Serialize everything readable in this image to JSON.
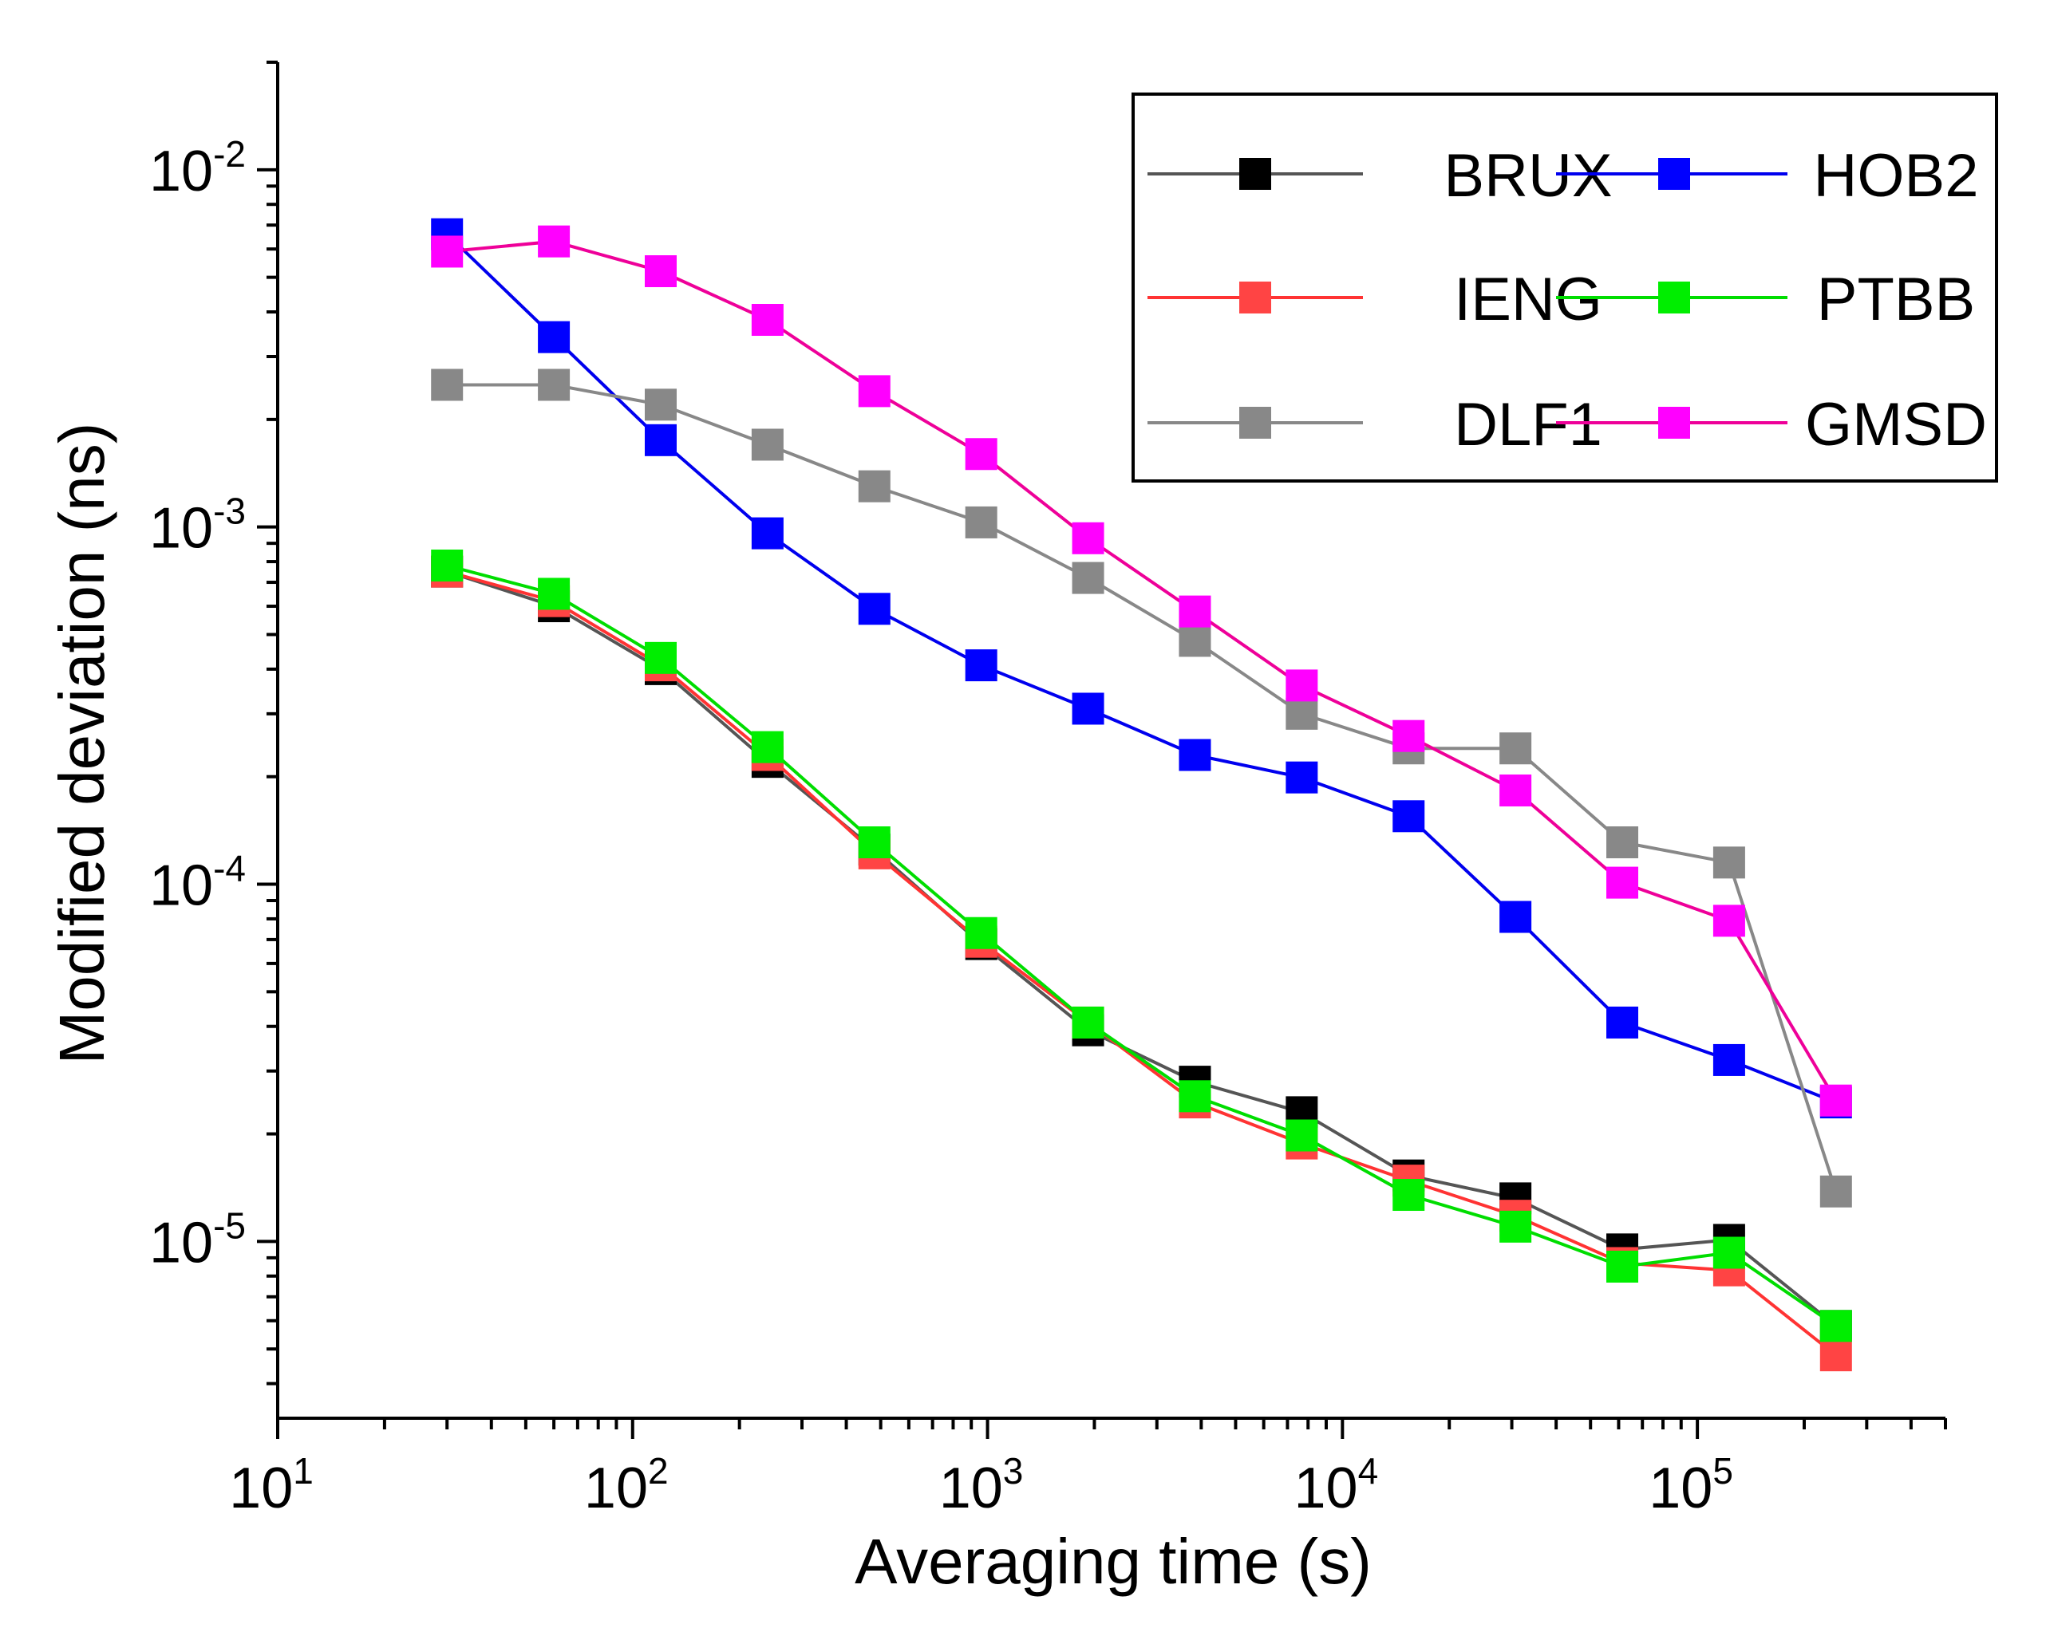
{
  "chart_data": {
    "type": "line",
    "x_scale": "log",
    "y_scale": "log",
    "xlabel": "Averaging time (s)",
    "ylabel": "Modified deviation (ns)",
    "xlim": [
      10,
      500000
    ],
    "ylim": [
      3.2e-06,
      0.02
    ],
    "x_ticks": [
      {
        "value": 10,
        "base": "10",
        "exp": "1"
      },
      {
        "value": 100,
        "base": "10",
        "exp": "2"
      },
      {
        "value": 1000,
        "base": "10",
        "exp": "3"
      },
      {
        "value": 10000,
        "base": "10",
        "exp": "4"
      },
      {
        "value": 100000,
        "base": "10",
        "exp": "5"
      }
    ],
    "y_ticks": [
      {
        "value": 1e-05,
        "base": "10",
        "exp": "-5"
      },
      {
        "value": 0.0001,
        "base": "10",
        "exp": "-4"
      },
      {
        "value": 0.001,
        "base": "10",
        "exp": "-3"
      },
      {
        "value": 0.01,
        "base": "10",
        "exp": "-2"
      }
    ],
    "legend_position": "top-right",
    "x": [
      30,
      60,
      120,
      240,
      480,
      960,
      1920,
      3840,
      7680,
      15360,
      30720,
      61440,
      122880,
      245760
    ],
    "series": [
      {
        "name": "BRUX",
        "line_color": "#555555",
        "marker_color": "#000000",
        "values": [
          0.00075,
          0.0006,
          0.0004,
          0.00022,
          0.000125,
          6.8e-05,
          3.9e-05,
          2.8e-05,
          2.3e-05,
          1.53e-05,
          1.32e-05,
          9.5e-06,
          1.01e-05,
          5.8e-06
        ]
      },
      {
        "name": "HOB2",
        "line_color": "#0000ee",
        "marker_color": "#0000ff",
        "values": [
          0.0066,
          0.0034,
          0.00175,
          0.00096,
          0.00059,
          0.00041,
          0.00031,
          0.00023,
          0.000199,
          0.000155,
          8.1e-05,
          4.1e-05,
          3.22e-05,
          2.45e-05
        ]
      },
      {
        "name": "IENG",
        "line_color": "#ff3333",
        "marker_color": "#ff4444",
        "values": [
          0.00075,
          0.00062,
          0.00041,
          0.00023,
          0.000122,
          6.9e-05,
          4.1e-05,
          2.45e-05,
          1.88e-05,
          1.48e-05,
          1.18e-05,
          8.7e-06,
          8.3e-06,
          4.8e-06
        ]
      },
      {
        "name": "PTBB",
        "line_color": "#00dd00",
        "marker_color": "#00ee00",
        "values": [
          0.00078,
          0.00065,
          0.00043,
          0.000242,
          0.000131,
          7.3e-05,
          4.1e-05,
          2.55e-05,
          1.98e-05,
          1.35e-05,
          1.1e-05,
          8.5e-06,
          9.3e-06,
          5.8e-06
        ]
      },
      {
        "name": "DLF1",
        "line_color": "#888888",
        "marker_color": "#888888",
        "values": [
          0.0025,
          0.0025,
          0.0022,
          0.0017,
          0.0013,
          0.00103,
          0.00072,
          0.00048,
          0.0003,
          0.00024,
          0.00024,
          0.000131,
          0.000115,
          1.38e-05
        ]
      },
      {
        "name": "GMSD",
        "line_color": "#ee0099",
        "marker_color": "#ff00ff",
        "values": [
          0.0059,
          0.0063,
          0.0052,
          0.0038,
          0.0024,
          0.0016,
          0.00093,
          0.00058,
          0.00036,
          0.00026,
          0.000183,
          0.000101,
          7.9e-05,
          2.48e-05
        ]
      }
    ]
  }
}
